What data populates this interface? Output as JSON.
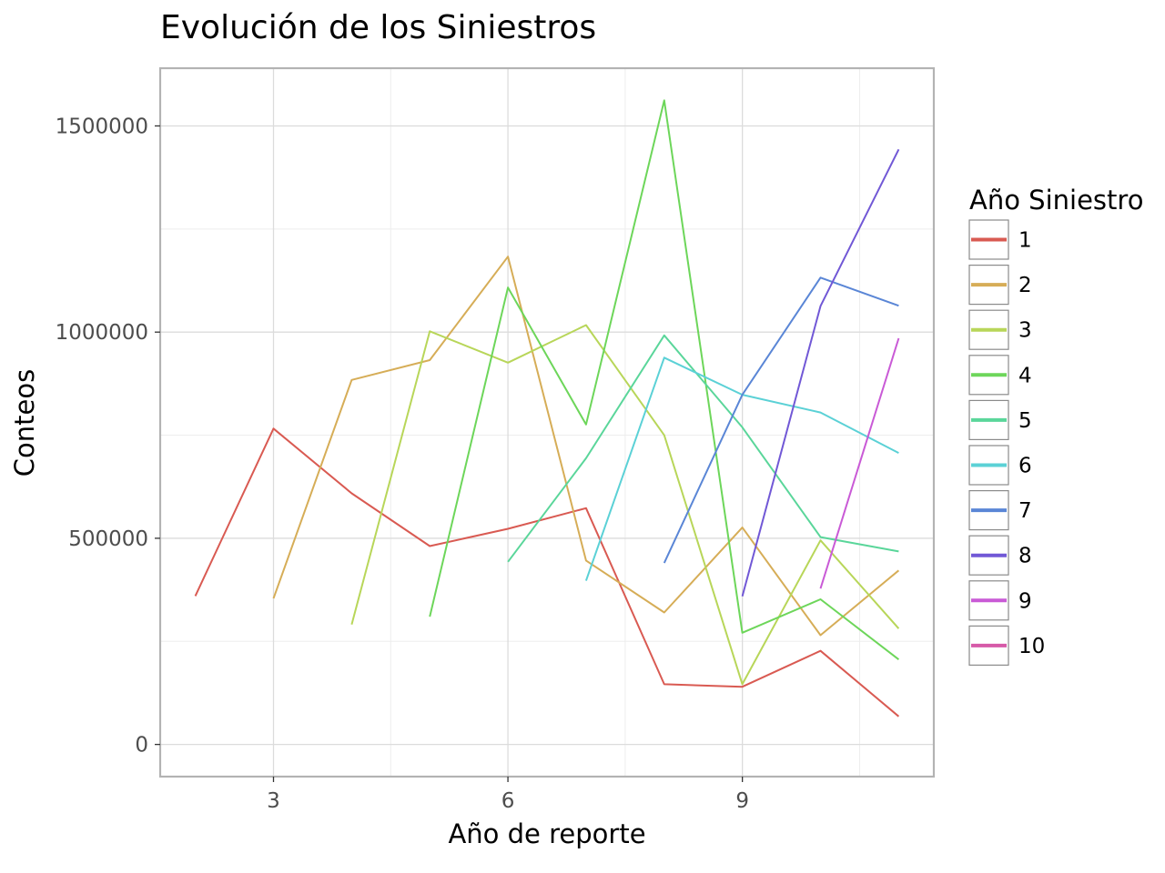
{
  "chart_data": {
    "type": "line",
    "title": "Evolución de los Siniestros",
    "xlabel": "Año de reporte",
    "ylabel": "Conteos",
    "xlim": [
      1.55,
      11.45
    ],
    "ylim": [
      -78000,
      1640000
    ],
    "x_ticks": [
      3,
      6,
      9
    ],
    "x_tick_labels": [
      "3",
      "6",
      "9"
    ],
    "y_ticks": [
      0,
      500000,
      1000000,
      1500000
    ],
    "y_tick_labels": [
      "0",
      "500000",
      "1000000",
      "1500000"
    ],
    "x_minor_ticks": [
      4.5,
      7.5,
      10.5
    ],
    "y_minor_ticks": [
      250000,
      750000,
      1250000
    ],
    "grid": true,
    "legend": {
      "title": "Año Siniestro",
      "position": "right"
    },
    "series": [
      {
        "name": "1",
        "color": "#d95a52",
        "x": [
          2,
          3,
          4,
          5,
          6,
          7,
          8,
          9,
          10,
          11
        ],
        "y": [
          360000,
          766000,
          609000,
          481000,
          523000,
          573000,
          146000,
          140000,
          227000,
          68000
        ]
      },
      {
        "name": "2",
        "color": "#d6ad57",
        "x": [
          3,
          4,
          5,
          6,
          7,
          8,
          9,
          10,
          11
        ],
        "y": [
          354000,
          884000,
          932000,
          1183000,
          446000,
          320000,
          526000,
          265000,
          422000
        ]
      },
      {
        "name": "3",
        "color": "#b8d659",
        "x": [
          4,
          5,
          6,
          7,
          8,
          9,
          10,
          11
        ],
        "y": [
          291000,
          1002000,
          926000,
          1017000,
          750000,
          146000,
          495000,
          281000
        ]
      },
      {
        "name": "4",
        "color": "#6dd65a",
        "x": [
          5,
          6,
          7,
          8,
          9,
          10,
          11
        ],
        "y": [
          310000,
          1108000,
          776000,
          1562000,
          271000,
          352000,
          206000
        ]
      },
      {
        "name": "5",
        "color": "#5ad69a",
        "x": [
          6,
          7,
          8,
          9,
          10,
          11
        ],
        "y": [
          443000,
          694000,
          992000,
          769000,
          503000,
          468000
        ]
      },
      {
        "name": "6",
        "color": "#5bd1d6",
        "x": [
          7,
          8,
          9,
          10,
          11
        ],
        "y": [
          397000,
          938000,
          848000,
          805000,
          707000
        ]
      },
      {
        "name": "7",
        "color": "#5a86d6",
        "x": [
          8,
          9,
          10,
          11
        ],
        "y": [
          440000,
          848000,
          1132000,
          1064000
        ]
      },
      {
        "name": "8",
        "color": "#7158d6",
        "x": [
          9,
          10,
          11
        ],
        "y": [
          359000,
          1063000,
          1443000
        ]
      },
      {
        "name": "9",
        "color": "#c95ad6",
        "x": [
          10,
          11
        ],
        "y": [
          378000,
          985000
        ]
      },
      {
        "name": "10",
        "color": "#d65aa8",
        "x": [],
        "y": []
      }
    ]
  }
}
